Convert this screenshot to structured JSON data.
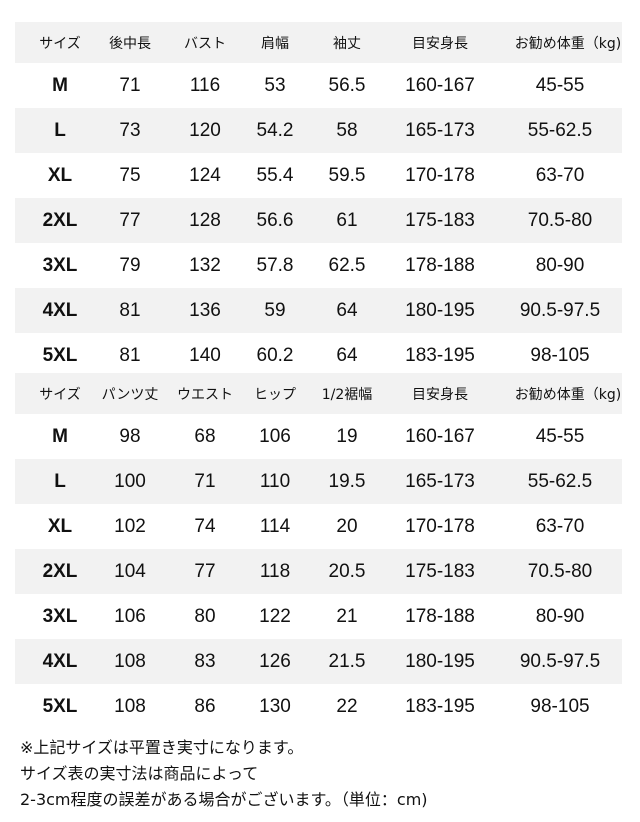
{
  "tops": {
    "headers": [
      "サイズ",
      "後中長",
      "バスト",
      "肩幅",
      "袖丈",
      "目安身長",
      "お勧め体重（kg)"
    ],
    "rows": [
      [
        "M",
        "71",
        "116",
        "53",
        "56.5",
        "160-167",
        "45-55"
      ],
      [
        "L",
        "73",
        "120",
        "54.2",
        "58",
        "165-173",
        "55-62.5"
      ],
      [
        "XL",
        "75",
        "124",
        "55.4",
        "59.5",
        "170-178",
        "63-70"
      ],
      [
        "2XL",
        "77",
        "128",
        "56.6",
        "61",
        "175-183",
        "70.5-80"
      ],
      [
        "3XL",
        "79",
        "132",
        "57.8",
        "62.5",
        "178-188",
        "80-90"
      ],
      [
        "4XL",
        "81",
        "136",
        "59",
        "64",
        "180-195",
        "90.5-97.5"
      ],
      [
        "5XL",
        "81",
        "140",
        "60.2",
        "64",
        "183-195",
        "98-105"
      ]
    ]
  },
  "pants": {
    "headers": [
      "サイズ",
      "パンツ丈",
      "ウエスト",
      "ヒップ",
      "1/2裾幅",
      "目安身長",
      "お勧め体重（kg)"
    ],
    "rows": [
      [
        "M",
        "98",
        "68",
        "106",
        "19",
        "160-167",
        "45-55"
      ],
      [
        "L",
        "100",
        "71",
        "110",
        "19.5",
        "165-173",
        "55-62.5"
      ],
      [
        "XL",
        "102",
        "74",
        "114",
        "20",
        "170-178",
        "63-70"
      ],
      [
        "2XL",
        "104",
        "77",
        "118",
        "20.5",
        "175-183",
        "70.5-80"
      ],
      [
        "3XL",
        "106",
        "80",
        "122",
        "21",
        "178-188",
        "80-90"
      ],
      [
        "4XL",
        "108",
        "83",
        "126",
        "21.5",
        "180-195",
        "90.5-97.5"
      ],
      [
        "5XL",
        "108",
        "86",
        "130",
        "22",
        "183-195",
        "98-105"
      ]
    ]
  },
  "notes": [
    "※上記サイズは平置き実寸になります。",
    "サイズ表の実寸法は商品によって",
    "2-3cm程度の誤差がある場合がございます。（単位：cm)"
  ],
  "colors": {
    "row_shade": "#f2f2f2",
    "text": "#111111"
  }
}
